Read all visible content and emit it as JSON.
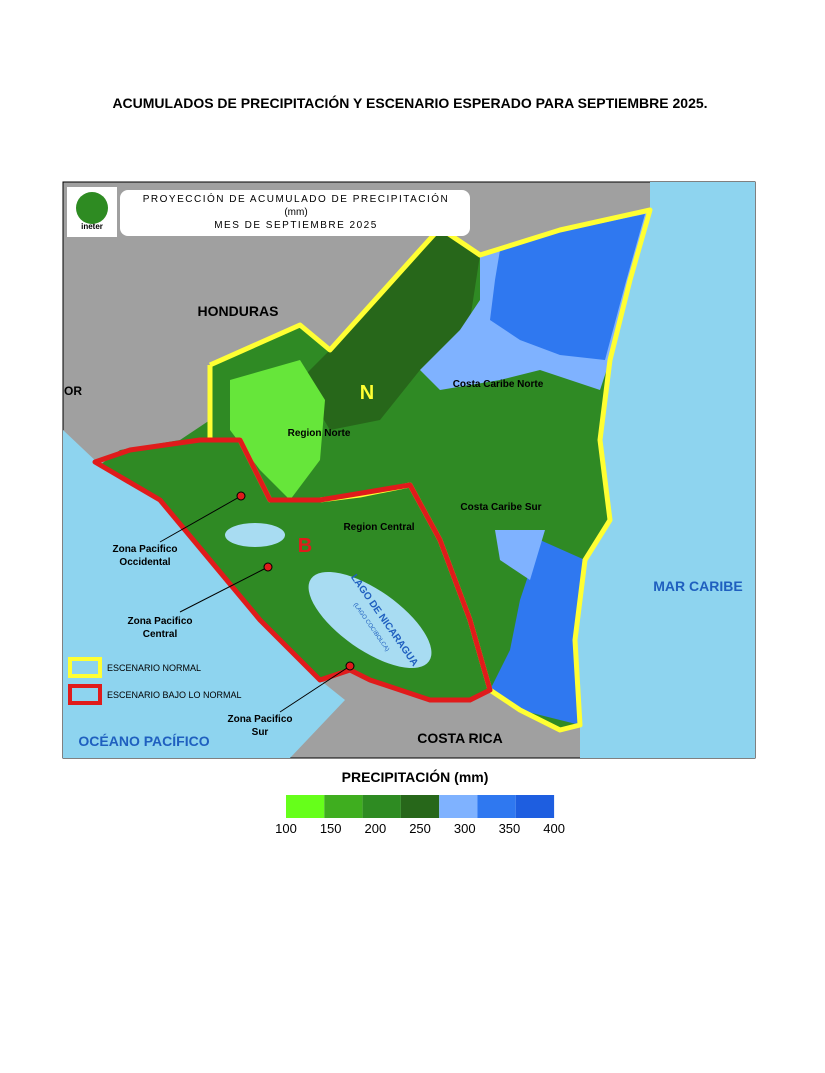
{
  "title": "ACUMULADOS DE PRECIPITACIÓN Y ESCENARIO ESPERADO PARA SEPTIEMBRE 2025.",
  "map": {
    "logo": "ineter",
    "header": [
      "PROYECCIÓN DE ACUMULADO DE PRECIPITACIÓN",
      "(mm)",
      "MES DE  SEPTIEMBRE 2025"
    ],
    "countries": {
      "north": "HONDURAS",
      "south": "COSTA RICA",
      "partial": "OR"
    },
    "seas": {
      "caribbean": "MAR CARIBE",
      "pacific": "OCÉANO PACÍFICO"
    },
    "scenario_marks": {
      "normal": "N",
      "below": "B"
    },
    "regions": [
      "Region Norte",
      "Costa Caribe Norte",
      "Region Central",
      "Costa Caribe Sur"
    ],
    "zones": [
      [
        "Zona Pacifico",
        "Occidental"
      ],
      [
        "Zona Pacifico",
        "Central"
      ],
      [
        "Zona Pacifico",
        "Sur"
      ]
    ],
    "lake": {
      "name": "LAGO DE NICARAGUA",
      "alt": "(LAGO COCIBOLCA)"
    },
    "legend": [
      "ESCENARIO NORMAL",
      "ESCENARIO BAJO LO NORMAL"
    ]
  },
  "colorbar": {
    "title": "PRECIPITACIÓN (mm)",
    "ticks": [
      100,
      150,
      200,
      250,
      300,
      350,
      400
    ],
    "colors": [
      "#66ff1a",
      "#3fae1f",
      "#2e8b22",
      "#27671a",
      "#7fb2ff",
      "#2f78f0",
      "#1e5ee0"
    ]
  }
}
